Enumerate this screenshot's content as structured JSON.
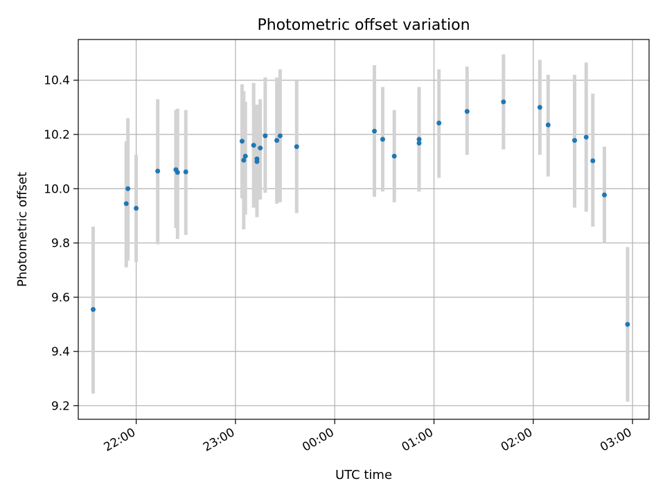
{
  "chart_data": {
    "type": "scatter",
    "title": "Photometric offset variation",
    "xlabel": "UTC time",
    "ylabel": "Photometric offset",
    "x_kind": "time",
    "x_range": [
      "21:25",
      "03:10"
    ],
    "ylim": [
      9.15,
      10.55
    ],
    "grid": true,
    "x_ticks": [
      "22:00",
      "23:00",
      "00:00",
      "01:00",
      "02:00",
      "03:00"
    ],
    "y_ticks": [
      "9.2",
      "9.4",
      "9.6",
      "9.8",
      "10.0",
      "10.2",
      "10.4"
    ],
    "colors": {
      "point": "#1f77b4",
      "errorbar": "#d3d3d3",
      "grid": "#b0b0b0"
    },
    "points": [
      {
        "x": "21:34",
        "y": 9.555,
        "ylow": 9.245,
        "yhigh": 9.86
      },
      {
        "x": "21:54",
        "y": 9.945,
        "ylow": 9.71,
        "yhigh": 10.175
      },
      {
        "x": "21:55",
        "y": 10.0,
        "ylow": 9.735,
        "yhigh": 10.26
      },
      {
        "x": "22:00",
        "y": 9.928,
        "ylow": 9.73,
        "yhigh": 10.125
      },
      {
        "x": "22:13",
        "y": 10.065,
        "ylow": 9.795,
        "yhigh": 10.33
      },
      {
        "x": "22:24",
        "y": 10.07,
        "ylow": 9.855,
        "yhigh": 10.29
      },
      {
        "x": "22:25",
        "y": 10.06,
        "ylow": 9.815,
        "yhigh": 10.295
      },
      {
        "x": "22:30",
        "y": 10.062,
        "ylow": 9.83,
        "yhigh": 10.29
      },
      {
        "x": "23:04",
        "y": 10.175,
        "ylow": 9.965,
        "yhigh": 10.385
      },
      {
        "x": "23:05",
        "y": 10.105,
        "ylow": 9.85,
        "yhigh": 10.36
      },
      {
        "x": "23:06",
        "y": 10.12,
        "ylow": 9.905,
        "yhigh": 10.32
      },
      {
        "x": "23:11",
        "y": 10.16,
        "ylow": 9.93,
        "yhigh": 10.39
      },
      {
        "x": "23:13",
        "y": 10.11,
        "ylow": 9.91,
        "yhigh": 10.31
      },
      {
        "x": "23:13",
        "y": 10.1,
        "ylow": 9.895,
        "yhigh": 10.305
      },
      {
        "x": "23:15",
        "y": 10.15,
        "ylow": 9.96,
        "yhigh": 10.33
      },
      {
        "x": "23:18",
        "y": 10.195,
        "ylow": 9.985,
        "yhigh": 10.41
      },
      {
        "x": "23:25",
        "y": 10.178,
        "ylow": 9.945,
        "yhigh": 10.41
      },
      {
        "x": "23:27",
        "y": 10.195,
        "ylow": 9.95,
        "yhigh": 10.44
      },
      {
        "x": "23:37",
        "y": 10.155,
        "ylow": 9.91,
        "yhigh": 10.4
      },
      {
        "x": "00:24",
        "y": 10.212,
        "ylow": 9.97,
        "yhigh": 10.455
      },
      {
        "x": "00:29",
        "y": 10.182,
        "ylow": 9.99,
        "yhigh": 10.375
      },
      {
        "x": "00:36",
        "y": 10.12,
        "ylow": 9.95,
        "yhigh": 10.29
      },
      {
        "x": "00:51",
        "y": 10.168,
        "ylow": 9.99,
        "yhigh": 10.345
      },
      {
        "x": "00:51",
        "y": 10.182,
        "ylow": 9.99,
        "yhigh": 10.375
      },
      {
        "x": "01:03",
        "y": 10.242,
        "ylow": 10.04,
        "yhigh": 10.44
      },
      {
        "x": "01:20",
        "y": 10.285,
        "ylow": 10.125,
        "yhigh": 10.45
      },
      {
        "x": "01:42",
        "y": 10.32,
        "ylow": 10.145,
        "yhigh": 10.495
      },
      {
        "x": "02:04",
        "y": 10.3,
        "ylow": 10.125,
        "yhigh": 10.475
      },
      {
        "x": "02:09",
        "y": 10.235,
        "ylow": 10.045,
        "yhigh": 10.42
      },
      {
        "x": "02:25",
        "y": 10.178,
        "ylow": 9.93,
        "yhigh": 10.42
      },
      {
        "x": "02:32",
        "y": 10.19,
        "ylow": 9.915,
        "yhigh": 10.465
      },
      {
        "x": "02:36",
        "y": 10.103,
        "ylow": 9.86,
        "yhigh": 10.35
      },
      {
        "x": "02:43",
        "y": 9.977,
        "ylow": 9.8,
        "yhigh": 10.155
      },
      {
        "x": "02:57",
        "y": 9.5,
        "ylow": 9.215,
        "yhigh": 9.785
      }
    ]
  }
}
